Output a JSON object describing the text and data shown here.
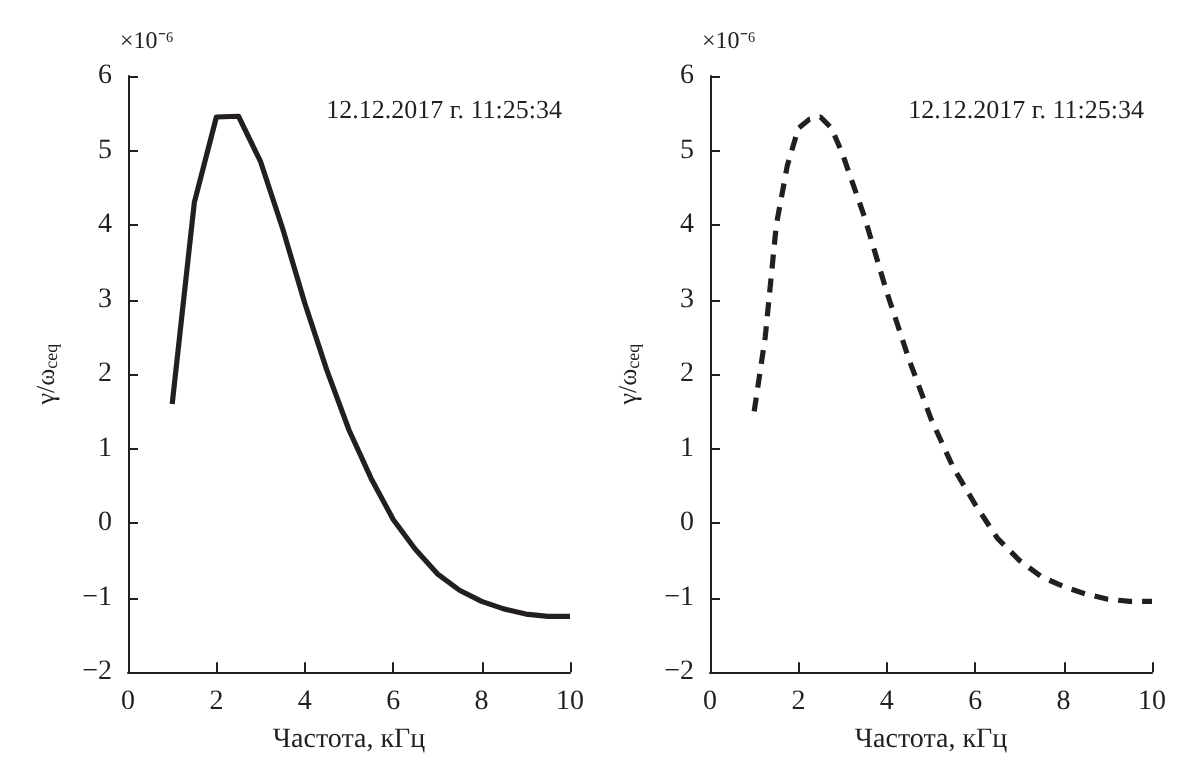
{
  "chart_data": [
    {
      "type": "line",
      "xlabel": "Частота, кГц",
      "ylabel": "γ/ω$_{ceq}$",
      "annotations": [
        "×10⁻⁶",
        "12.12.2017 г. 11:25:34"
      ],
      "x": [
        1,
        1.5,
        2,
        2.5,
        3,
        3.5,
        4,
        4.5,
        5,
        5.5,
        6,
        6.5,
        7,
        7.5,
        8,
        8.5,
        9,
        9.5,
        10
      ],
      "series": [
        {
          "color": "#231f20",
          "line_style": "solid",
          "values": [
            1.6,
            4.3,
            5.45,
            5.46,
            4.85,
            3.95,
            2.95,
            2.05,
            1.25,
            0.6,
            0.05,
            -0.35,
            -0.68,
            -0.9,
            -1.05,
            -1.15,
            -1.22,
            -1.25,
            -1.25
          ]
        }
      ],
      "xlim": [
        0,
        10
      ],
      "xticks": [
        0,
        2,
        4,
        6,
        8,
        10
      ],
      "ylim": [
        -2,
        6
      ],
      "yticks": [
        -2,
        -1,
        0,
        1,
        2,
        3,
        4,
        5,
        6
      ],
      "grid": false,
      "marker": "none"
    },
    {
      "type": "line",
      "xlabel": "Частота, кГц",
      "ylabel": "γ/ω$_{ceq}$",
      "annotations": [
        "×10⁻⁶",
        "12.12.2017 г. 11:25:34"
      ],
      "x": [
        1,
        1.25,
        1.5,
        1.75,
        2,
        2.25,
        2.5,
        2.75,
        3,
        3.5,
        4,
        4.5,
        5,
        5.5,
        6,
        6.5,
        7,
        7.5,
        8,
        8.5,
        9,
        9.5,
        10
      ],
      "series": [
        {
          "color": "#231f20",
          "line_style": "dashed",
          "values": [
            1.5,
            2.5,
            4.0,
            4.8,
            5.3,
            5.42,
            5.45,
            5.3,
            4.95,
            4.1,
            3.1,
            2.2,
            1.4,
            0.75,
            0.25,
            -0.2,
            -0.5,
            -0.72,
            -0.85,
            -0.95,
            -1.02,
            -1.05,
            -1.05
          ]
        }
      ],
      "xlim": [
        0,
        10
      ],
      "xticks": [
        0,
        2,
        4,
        6,
        8,
        10
      ],
      "ylim": [
        -2,
        6
      ],
      "yticks": [
        -2,
        -1,
        0,
        1,
        2,
        3,
        4,
        5,
        6
      ],
      "grid": false,
      "marker": "none"
    }
  ]
}
